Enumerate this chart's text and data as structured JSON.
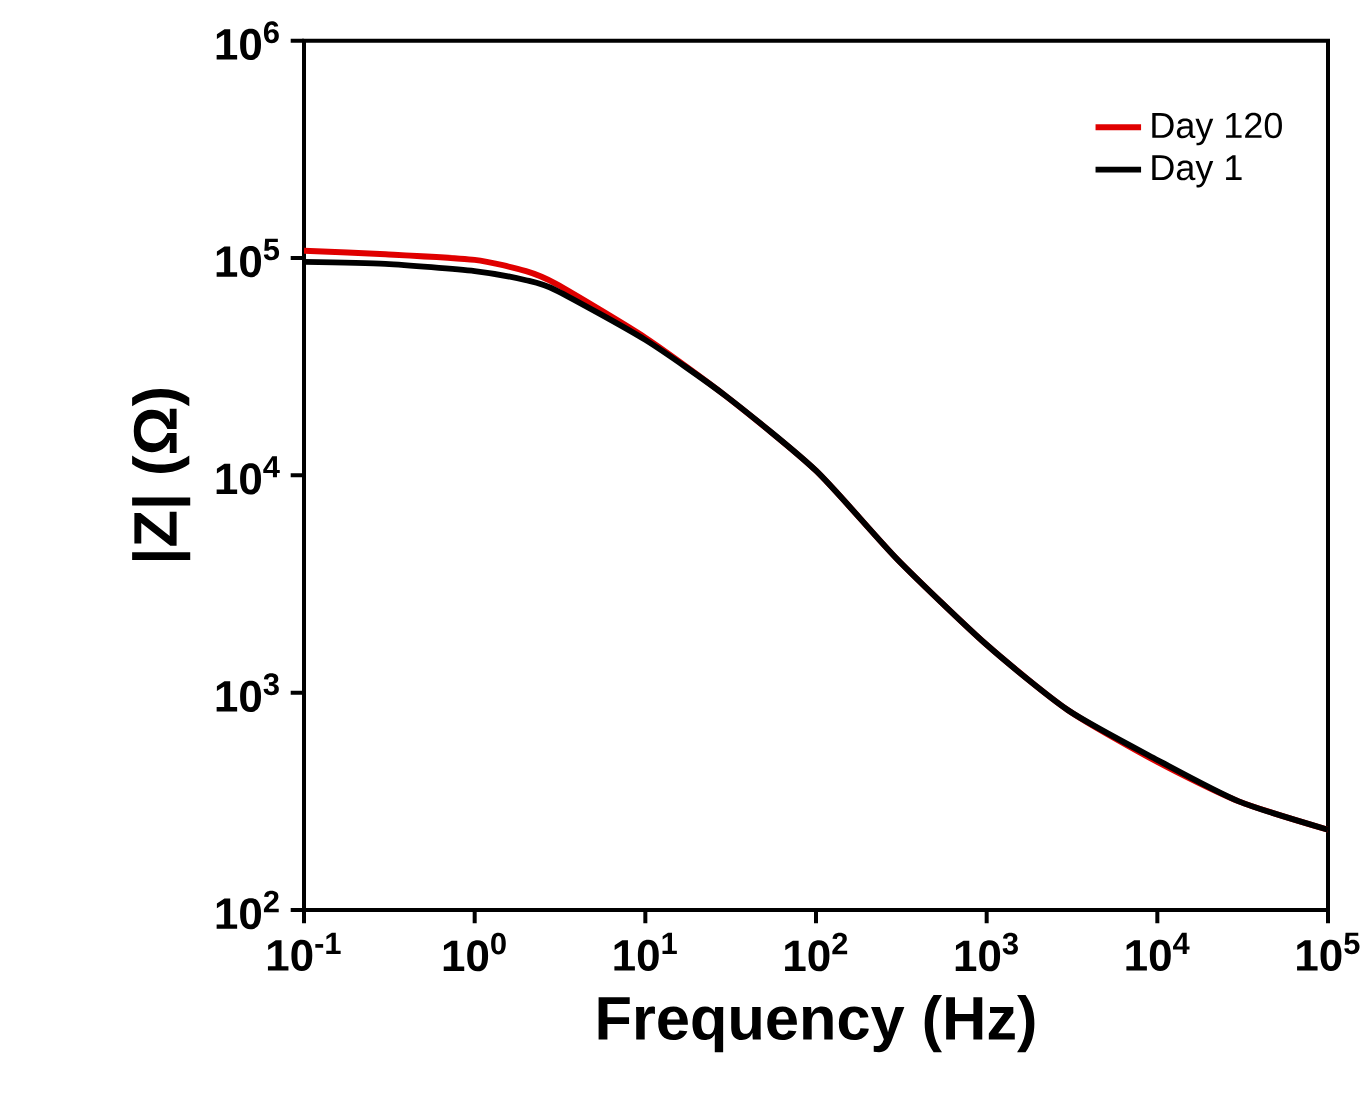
{
  "chart_data": {
    "type": "line",
    "xlabel": "Frequency (Hz)",
    "ylabel": "|Z| (Ω)",
    "log": "xy",
    "legend": "top right",
    "line_style": "solid",
    "marker": "none",
    "xlim": [
      0.1,
      100000
    ],
    "ylim": [
      100,
      1000000
    ],
    "xticks": [
      {
        "value": 0.1,
        "label": "10$^{-1}$"
      },
      {
        "value": 1,
        "label": "10$^{0}$"
      },
      {
        "value": 10,
        "label": "10$^{1}$"
      },
      {
        "value": 100,
        "label": "10$^{2}$"
      },
      {
        "value": 1000,
        "label": "10$^{3}$"
      },
      {
        "value": 10000,
        "label": "10$^{4}$"
      },
      {
        "value": 100000,
        "label": "10$^{5}$"
      }
    ],
    "yticks": [
      {
        "value": 100,
        "label": "10$^{2}$"
      },
      {
        "value": 1000,
        "label": "10$^{3}$"
      },
      {
        "value": 10000,
        "label": "10$^{4}$"
      },
      {
        "value": 100000,
        "label": "10$^{5}$"
      },
      {
        "value": 1000000,
        "label": "10$^{6}$"
      }
    ],
    "x": [
      0.1,
      0.3,
      1,
      2,
      3,
      10,
      30,
      100,
      300,
      1000,
      3000,
      10000,
      30000,
      100000
    ],
    "series": [
      {
        "name": "Day 120",
        "color": "#e00000",
        "values": [
          108000,
          104000,
          98000,
          87000,
          76000,
          43000,
          23000,
          10500,
          4100,
          1660,
          830,
          480,
          316,
          234
        ]
      },
      {
        "name": "Day 1",
        "color": "#000000",
        "values": [
          96000,
          94000,
          87000,
          79000,
          71000,
          42000,
          23000,
          10500,
          4100,
          1660,
          830,
          490,
          316,
          234
        ]
      }
    ]
  }
}
